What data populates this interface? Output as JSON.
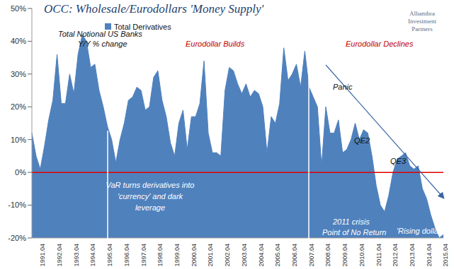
{
  "chart_data": {
    "type": "area",
    "title": "OCC: Wholesale/Eurodollars 'Money Supply'",
    "logo": [
      "Alhambra",
      "Investment",
      "Partners"
    ],
    "categories": [
      null,
      null,
      "1991.04",
      null,
      null,
      null,
      "1992.04",
      null,
      null,
      null,
      "1993.04",
      null,
      null,
      null,
      "1994.04",
      null,
      null,
      null,
      "1995.04",
      null,
      null,
      null,
      "1996.04",
      null,
      null,
      null,
      "1997.04",
      null,
      null,
      null,
      "1998.04",
      null,
      null,
      null,
      "1999.04",
      null,
      null,
      null,
      "2000.04",
      null,
      null,
      null,
      "2001.04",
      null,
      null,
      null,
      "2002.04",
      null,
      null,
      null,
      "2003.04",
      null,
      null,
      null,
      "2004.04",
      null,
      null,
      null,
      "2005.04",
      null,
      null,
      null,
      "2006.04",
      null,
      null,
      null,
      "2007.04",
      null,
      null,
      null,
      "2008.04",
      null,
      null,
      null,
      "2009.04",
      null,
      null,
      null,
      "2010.04",
      null,
      null,
      null,
      "2011.04",
      null,
      null,
      null,
      "2012.04",
      null,
      null,
      null,
      "2013.04",
      null,
      null,
      null,
      "2014.04",
      null,
      null,
      null,
      "2015.04"
    ],
    "series": [
      {
        "name": "Total Derivatives",
        "color": "#4f81bd",
        "values": [
          12,
          5,
          1,
          8,
          16,
          22,
          36,
          21,
          21,
          30,
          24,
          36,
          42,
          40,
          32,
          33,
          25,
          20,
          14,
          10,
          3,
          10,
          15,
          22,
          23,
          26,
          25,
          19,
          20,
          29,
          31,
          22,
          17,
          9,
          5,
          15,
          19,
          7,
          17,
          17,
          21,
          34,
          12,
          6,
          6,
          5,
          25,
          32,
          31,
          27,
          24,
          27,
          23,
          25,
          24,
          20,
          6,
          17,
          15,
          21,
          38,
          28,
          30,
          33,
          26,
          37,
          26,
          23,
          20,
          2,
          20,
          12,
          12,
          16,
          6,
          7,
          10,
          15,
          10,
          13,
          12,
          5,
          -4,
          -10,
          -12,
          -7,
          0,
          4,
          5,
          6,
          2,
          1,
          2,
          -5,
          -8,
          -13,
          -17,
          -20,
          -19
        ]
      }
    ],
    "ylim": [
      -20,
      50
    ],
    "yticks": [
      {
        "value": -20,
        "label": "-20%"
      },
      {
        "value": -10,
        "label": "-10%"
      },
      {
        "value": 0,
        "label": "0%"
      },
      {
        "value": 10,
        "label": "10%"
      },
      {
        "value": 20,
        "label": "20%"
      },
      {
        "value": 30,
        "label": "30%"
      },
      {
        "value": 40,
        "label": "40%"
      },
      {
        "value": 50,
        "label": "50%"
      }
    ],
    "zero_line": 0,
    "grid": false,
    "legend": "top left",
    "annotations": [
      "Total Notional US Banks",
      "Y/Y % change",
      "Eurodollar Builds",
      "Eurodollar Declines",
      "Panic",
      "QE2",
      "QE3",
      "VaR turns derivatives into",
      "'currency' and dark",
      "leverage",
      "2011 crisis",
      "Point of No Return",
      "'Rising dollar'"
    ]
  }
}
